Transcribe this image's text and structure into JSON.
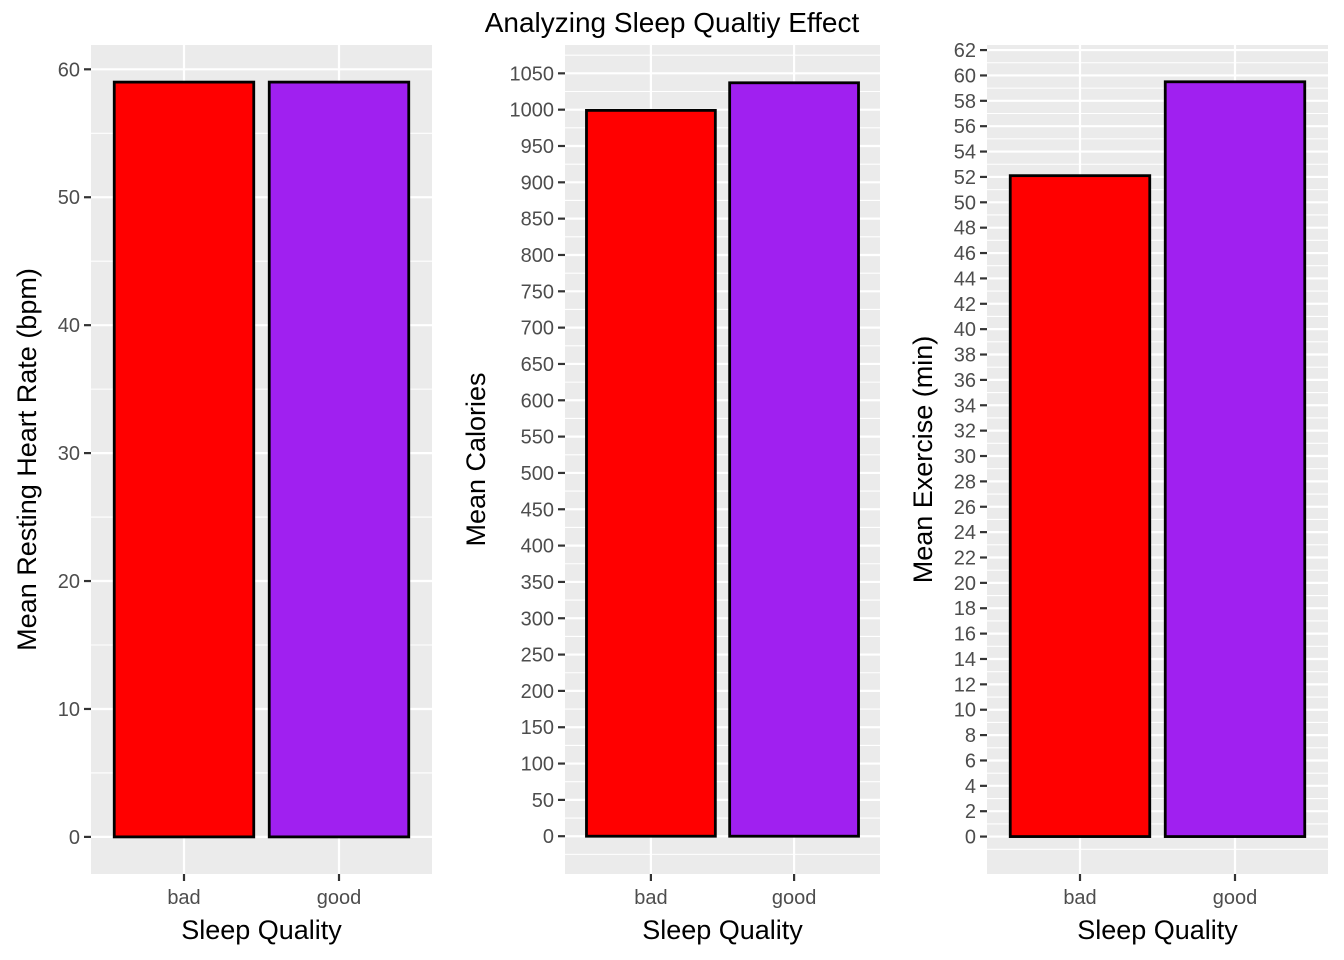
{
  "title": "Analyzing Sleep Qualtiy Effect",
  "colors": {
    "bad": "#ff0000",
    "good": "#a020f0",
    "panel_background": "#ebebeb",
    "gridline": "#ffffff",
    "bar_outline": "#000000"
  },
  "chart_data": [
    {
      "type": "bar",
      "title": "",
      "categories": [
        "bad",
        "good"
      ],
      "values": [
        59.0,
        59.0
      ],
      "xlabel": "Sleep Quality",
      "ylabel": "Mean Resting Heart Rate (bpm)",
      "ylim": [
        -2.9,
        61.9
      ],
      "yticks": [
        0,
        10,
        20,
        30,
        40,
        50,
        60
      ],
      "yminor": [
        5,
        15,
        25,
        35,
        45,
        55
      ],
      "grid": true,
      "legend": "none"
    },
    {
      "type": "bar",
      "title": "",
      "categories": [
        "bad",
        "good"
      ],
      "values": [
        999,
        1037
      ],
      "xlabel": "Sleep Quality",
      "ylabel": "Mean Calories",
      "ylim": [
        -52,
        1089
      ],
      "yticks": [
        0,
        50,
        100,
        150,
        200,
        250,
        300,
        350,
        400,
        450,
        500,
        550,
        600,
        650,
        700,
        750,
        800,
        850,
        900,
        950,
        1000,
        1050
      ],
      "yminor": [
        -25,
        25,
        75,
        125,
        175,
        225,
        275,
        325,
        375,
        425,
        475,
        525,
        575,
        625,
        675,
        725,
        775,
        825,
        875,
        925,
        975,
        1025,
        1075
      ],
      "grid": true,
      "legend": "none"
    },
    {
      "type": "bar",
      "title": "",
      "categories": [
        "bad",
        "good"
      ],
      "values": [
        52.1,
        59.5
      ],
      "xlabel": "Sleep Quality",
      "ylabel": "Mean Exercise (min)",
      "ylim": [
        -2.95,
        62.4
      ],
      "yticks": [
        0,
        2,
        4,
        6,
        8,
        10,
        12,
        14,
        16,
        18,
        20,
        22,
        24,
        26,
        28,
        30,
        32,
        34,
        36,
        38,
        40,
        42,
        44,
        46,
        48,
        50,
        52,
        54,
        56,
        58,
        60,
        62
      ],
      "yminor": [
        -1,
        1,
        3,
        5,
        7,
        9,
        11,
        13,
        15,
        17,
        19,
        21,
        23,
        25,
        27,
        29,
        31,
        33,
        35,
        37,
        39,
        41,
        43,
        45,
        47,
        49,
        51,
        53,
        55,
        57,
        59,
        61
      ],
      "grid": true,
      "legend": "none"
    }
  ]
}
